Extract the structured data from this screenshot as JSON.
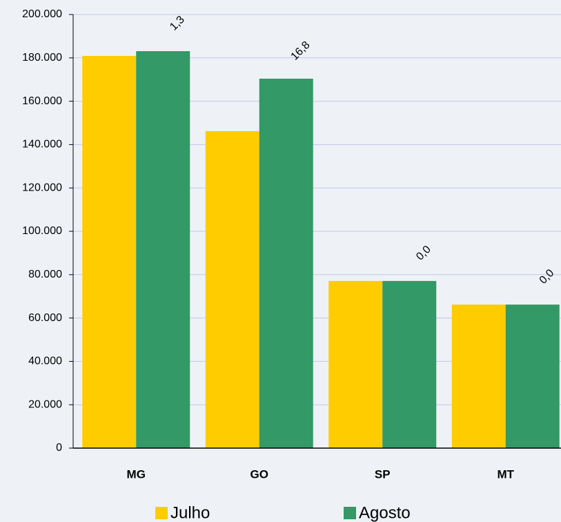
{
  "chart_data": {
    "type": "bar",
    "categories": [
      "MG",
      "GO",
      "SP",
      "MT"
    ],
    "series": [
      {
        "name": "Julho",
        "color": "#ffcc00",
        "values": [
          180900,
          146200,
          77100,
          66200
        ]
      },
      {
        "name": "Agosto",
        "color": "#339966",
        "values": [
          183100,
          170400,
          77100,
          66200
        ]
      }
    ],
    "annotations": [
      "1,3",
      "16,8",
      "0,0",
      "0,0"
    ],
    "ylim": [
      0,
      200000
    ],
    "yticks": [
      0,
      {
        "value": 20000,
        "label": "20.000"
      },
      {
        "value": 40000,
        "label": "40.000"
      },
      {
        "value": 60000,
        "label": "60.000"
      },
      {
        "value": 80000,
        "label": "80.000"
      },
      {
        "value": 100000,
        "label": "100.000"
      },
      {
        "value": 120000,
        "label": "120.000"
      },
      {
        "value": 140000,
        "label": "140.000"
      },
      {
        "value": 160000,
        "label": "160.000"
      },
      {
        "value": 180000,
        "label": "180.000"
      },
      {
        "value": 200000,
        "label": "200.000"
      }
    ],
    "grid": true
  }
}
